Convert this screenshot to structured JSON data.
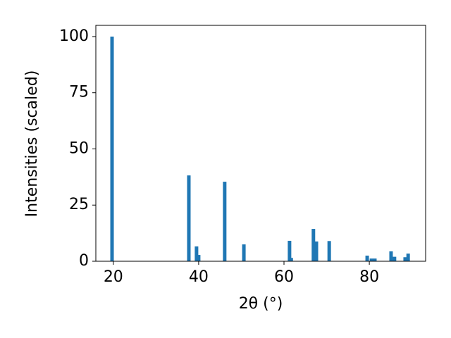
{
  "chart_data": {
    "type": "bar",
    "xlabel": "2θ (°)",
    "ylabel": "Intensities (scaled)",
    "x": [
      19.7,
      37.7,
      39.5,
      40.0,
      46.1,
      50.6,
      61.3,
      61.7,
      66.9,
      67.6,
      70.6,
      79.5,
      80.5,
      81.3,
      85.1,
      85.9,
      88.4,
      89.1
    ],
    "values": [
      100,
      38.2,
      6.6,
      2.8,
      35.4,
      7.5,
      9.1,
      1.5,
      14.4,
      8.8,
      9.0,
      2.5,
      1.2,
      1.2,
      4.4,
      2.0,
      1.8,
      3.4
    ],
    "color": "#1f77b4",
    "xlim": [
      15.9,
      93.2
    ],
    "xticks": [
      20,
      40,
      60,
      80
    ],
    "ylim": [
      0,
      105
    ],
    "yticks": [
      0,
      25,
      50,
      75,
      100
    ]
  }
}
